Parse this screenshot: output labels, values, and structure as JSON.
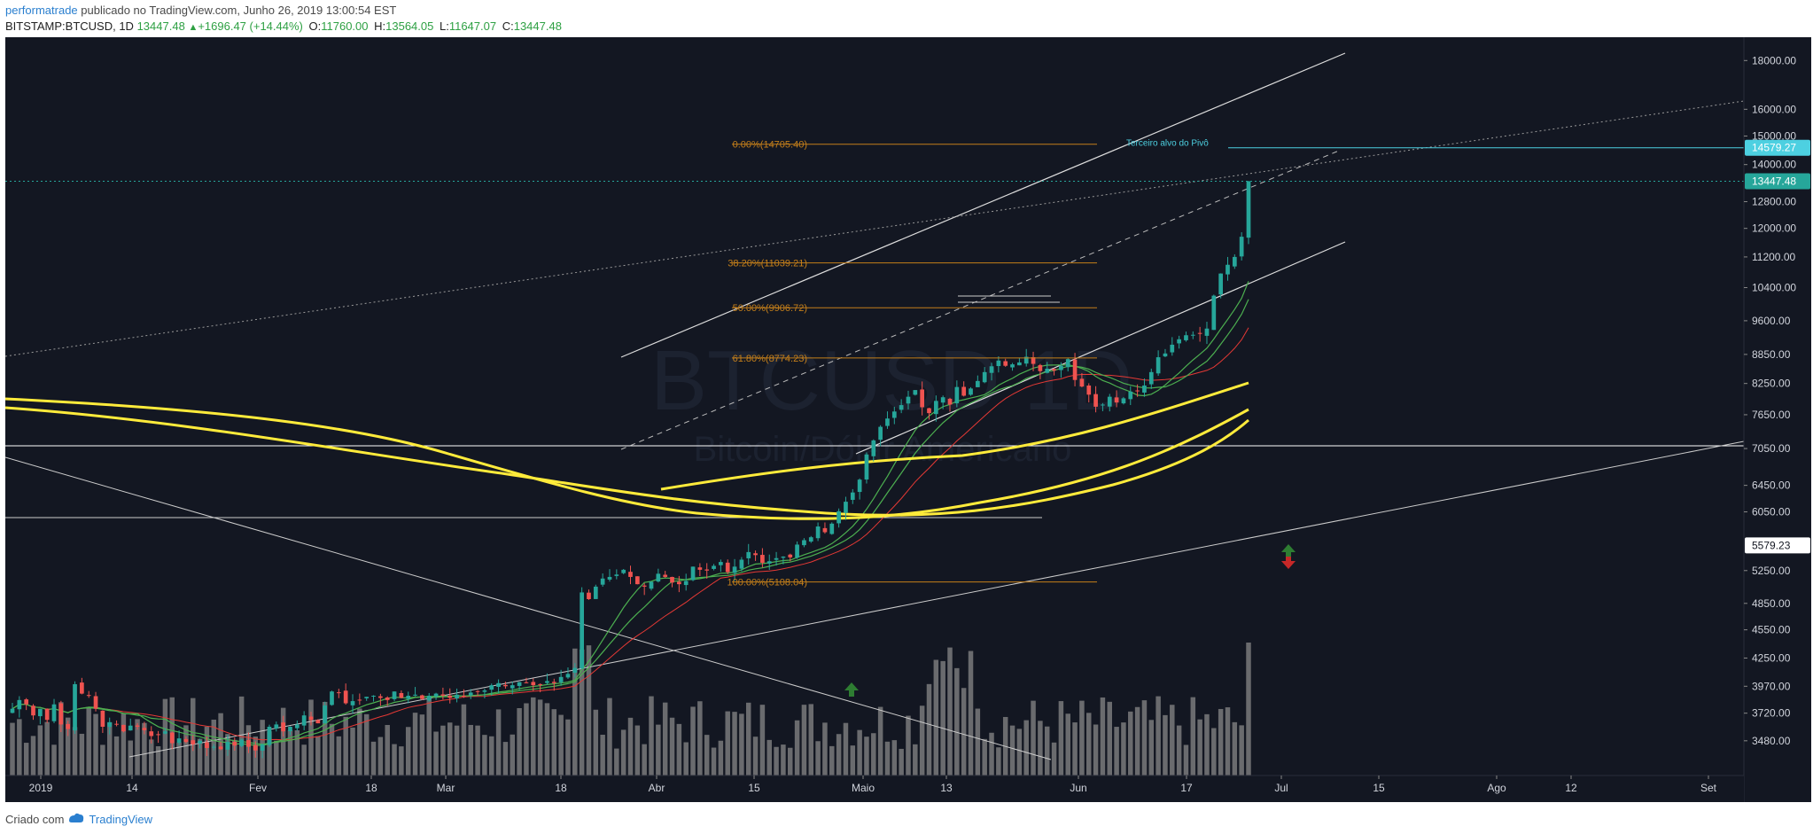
{
  "header": {
    "author": "performatrade",
    "publish_text": " publicado no TradingView.com, Junho 26, 2019 13:00:54 EST"
  },
  "ohlc": {
    "symbol": "BITSTAMP:BTCUSD, 1D",
    "last": "13447.48",
    "change_icon": "triangle-up-icon",
    "change": "+1696.47 (+14.44%)",
    "o_label": "O:",
    "o": "11760.00",
    "h_label": "H:",
    "h": "13564.05",
    "l_label": "L:",
    "l": "11647.07",
    "c_label": "C:",
    "c": "13447.48"
  },
  "footer": {
    "created_with": "Criado com",
    "brand": "TradingView"
  },
  "colors": {
    "background": "#131722",
    "up": "#26a69a",
    "down": "#ef5350",
    "ma_yellow": "#ffeb3b",
    "ma_green": "#4caf50",
    "ma_red": "#e53935",
    "fib": "#c47f1a",
    "cyan": "#4dd0e1",
    "volume": "#888888"
  },
  "chart_data": {
    "type": "candlestick",
    "symbol": "BITSTAMP:BTCUSD",
    "interval": "1D",
    "watermark": {
      "symbol": "BTCUSD",
      "interval": "1D",
      "description": "Bitcoin/Dólar Americano"
    },
    "y_scale": "log",
    "ylim": [
      3200,
      18800
    ],
    "y_ticks": [
      "18000.00",
      "16000.00",
      "15000.00",
      "14000.00",
      "12800.00",
      "12000.00",
      "11200.00",
      "10400.00",
      "9600.00",
      "8850.00",
      "8250.00",
      "7650.00",
      "7050.00",
      "6450.00",
      "6050.00",
      "5250.00",
      "4850.00",
      "4550.00",
      "4250.00",
      "3970.00",
      "3720.00",
      "3480.00"
    ],
    "x_ticks": [
      "2019",
      "14",
      "Fev",
      "18",
      "Mar",
      "18",
      "Abr",
      "15",
      "Maio",
      "13",
      "Jun",
      "17",
      "Jul",
      "15",
      "Ago",
      "12",
      "Set"
    ],
    "price_labels": [
      {
        "value": 14579.27,
        "text": "14579.27",
        "color": "#4dd0e1"
      },
      {
        "value": 13447.48,
        "text": "13447.48",
        "color": "#26a69a"
      },
      {
        "value": 5579.23,
        "text": "5579.23",
        "color": "#ffffff"
      }
    ],
    "fib_levels": [
      {
        "label": "0.00%(14705.40)",
        "value": 14705.4
      },
      {
        "label": "38.20%(11039.21)",
        "value": 11039.21
      },
      {
        "label": "50.00%(9906.72)",
        "value": 9906.72
      },
      {
        "label": "61.80%(8774.23)",
        "value": 8774.23
      },
      {
        "label": "100.00%(5108.04)",
        "value": 5108.04
      }
    ],
    "annotation": {
      "text": "Terceiro alvo do Pivô",
      "value": 14579.27
    },
    "horizontal_line": 5579.23,
    "closes": [
      3760,
      3840,
      3800,
      3700,
      3760,
      3660,
      3800,
      3620,
      3580,
      3990,
      3900,
      3880,
      3760,
      3600,
      3640,
      3620,
      3560,
      3610,
      3600,
      3570,
      3520,
      3530,
      3560,
      3460,
      3500,
      3470,
      3450,
      3480,
      3420,
      3430,
      3410,
      3470,
      3440,
      3490,
      3430,
      3400,
      3450,
      3600,
      3620,
      3560,
      3600,
      3620,
      3700,
      3660,
      3630,
      3790,
      3920,
      3910,
      3810,
      3830,
      3840,
      3870,
      3880,
      3860,
      3840,
      3920,
      3860,
      3880,
      3890,
      3850,
      3880,
      3900,
      3880,
      3860,
      3890,
      3880,
      3910,
      3920,
      3930,
      3980,
      4000,
      3970,
      3980,
      4010,
      4000,
      3980,
      3990,
      4020,
      4000,
      4060,
      4090,
      4150,
      4980,
      4900,
      5050,
      5150,
      5170,
      5200,
      5260,
      5170,
      5080,
      5050,
      5110,
      5210,
      5170,
      5100,
      5080,
      5120,
      5300,
      5260,
      5250,
      5310,
      5360,
      5230,
      5300,
      5390,
      5490,
      5450,
      5350,
      5370,
      5410,
      5430,
      5420,
      5590,
      5650,
      5690,
      5840,
      5760,
      5880,
      6060,
      6200,
      6340,
      6540,
      6950,
      7190,
      7430,
      7580,
      7710,
      7830,
      7990,
      8120,
      7790,
      7680,
      7910,
      7980,
      7840,
      8180,
      8010,
      8150,
      8300,
      8480,
      8600,
      8720,
      8610,
      8640,
      8680,
      8800,
      8650,
      8500,
      8550,
      8510,
      8610,
      8750,
      8320,
      8190,
      8030,
      7800,
      7840,
      7990,
      7880,
      7960,
      8090,
      8100,
      8210,
      8480,
      8790,
      8870,
      9060,
      9180,
      9270,
      9280,
      9300,
      9420,
      10200,
      10760,
      10990,
      11200,
      11760,
      13447
    ]
  }
}
